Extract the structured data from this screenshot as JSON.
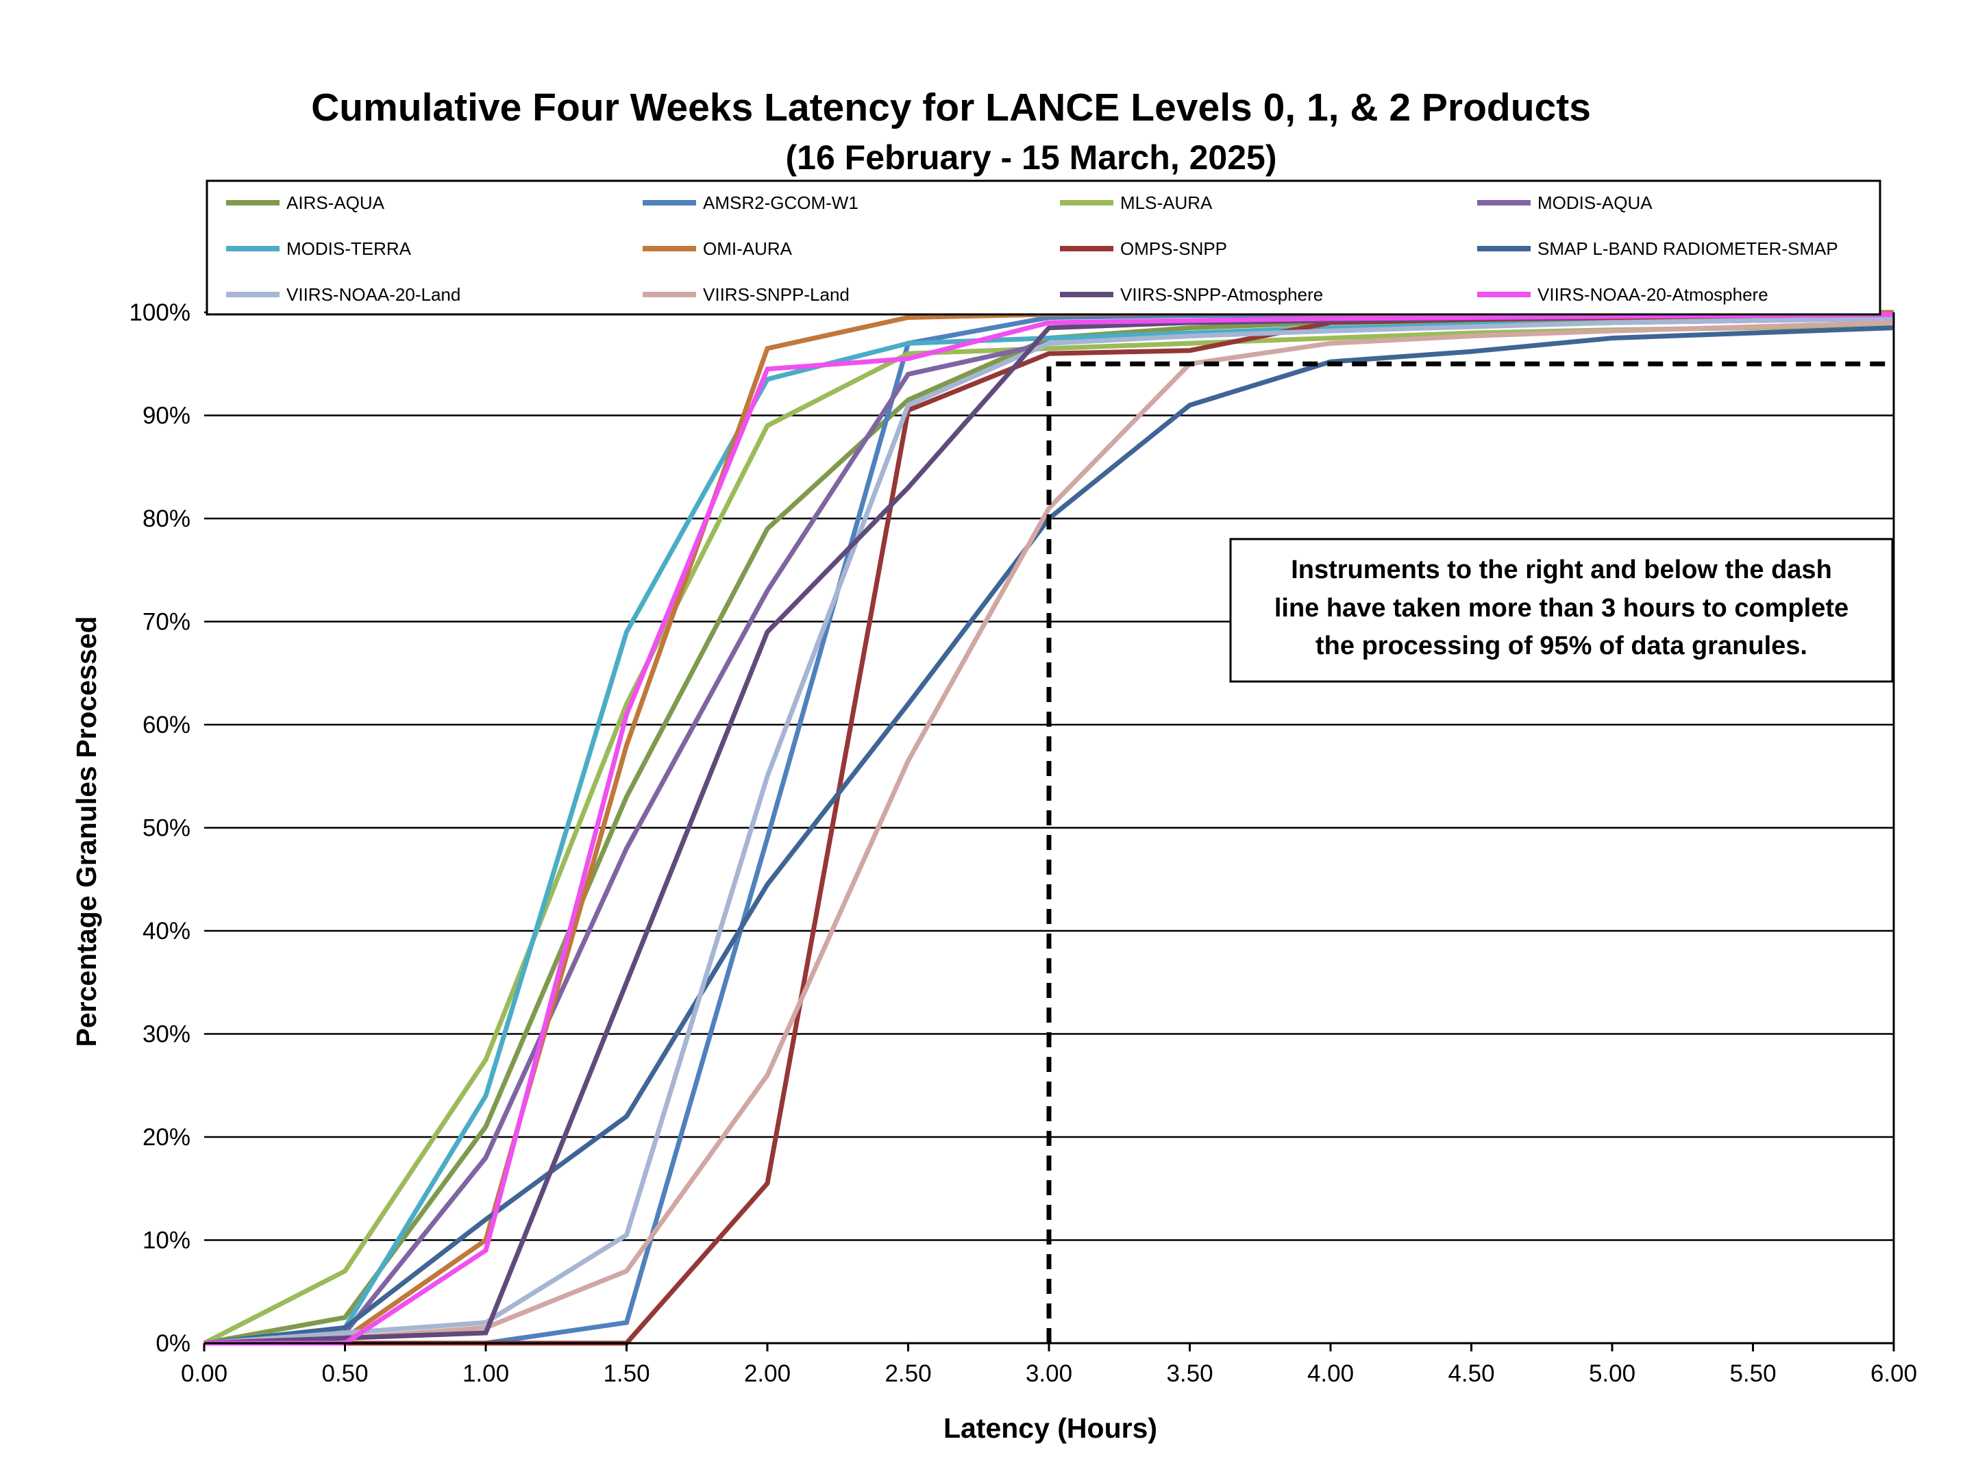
{
  "chart_data": {
    "type": "line",
    "title": "Cumulative Four Weeks Latency  for LANCE Levels 0, 1, & 2 Products",
    "subtitle": "(16  February   -  15  March,  2025)",
    "xlabel": "Latency (Hours)",
    "ylabel": "Percentage Granules Processed",
    "xlim": [
      0,
      6
    ],
    "ylim": [
      0,
      100
    ],
    "x_ticks": [
      "0.00",
      "0.50",
      "1.00",
      "1.50",
      "2.00",
      "2.50",
      "3.00",
      "3.50",
      "4.00",
      "4.50",
      "5.00",
      "5.50",
      "6.00"
    ],
    "y_ticks": [
      "0%",
      "10%",
      "20%",
      "30%",
      "40%",
      "50%",
      "60%",
      "70%",
      "80%",
      "90%",
      "100%"
    ],
    "grid": true,
    "legend_position": "top",
    "x": [
      0,
      0.5,
      1,
      1.5,
      2,
      2.5,
      3,
      3.5,
      4,
      4.5,
      5,
      5.5,
      6
    ],
    "series": [
      {
        "name": "AIRS-AQUA",
        "color": "#7F9A4E",
        "values": [
          0,
          2.5,
          21,
          53,
          79,
          91.5,
          97.5,
          98.5,
          99,
          99.2,
          99.4,
          99.5,
          99.6
        ]
      },
      {
        "name": "AMSR2-GCOM-W1",
        "color": "#4F81BD",
        "values": [
          0,
          0,
          0,
          2,
          49,
          97,
          99.5,
          99.7,
          99.8,
          99.8,
          99.9,
          99.9,
          100
        ]
      },
      {
        "name": "MLS-AURA",
        "color": "#9BBB59",
        "values": [
          0,
          7,
          27.5,
          62,
          89,
          96,
          96.5,
          97,
          97.5,
          98,
          98.3,
          98.5,
          98.8
        ]
      },
      {
        "name": "MODIS-AQUA",
        "color": "#8064A2",
        "values": [
          0,
          1,
          18,
          48,
          73,
          94,
          97,
          97.8,
          98.3,
          98.7,
          99,
          99.2,
          99.4
        ]
      },
      {
        "name": "MODIS-TERRA",
        "color": "#4BACC6",
        "values": [
          0,
          1.5,
          24,
          69,
          93.5,
          97,
          97.5,
          98,
          98.5,
          98.8,
          99,
          99.2,
          99.4
        ]
      },
      {
        "name": "OMI-AURA",
        "color": "#C0783B",
        "values": [
          0,
          0.5,
          10,
          58,
          96.5,
          99.5,
          99.8,
          99.9,
          99.9,
          99.9,
          100,
          100,
          100
        ]
      },
      {
        "name": "OMPS-SNPP",
        "color": "#953735",
        "values": [
          0,
          0,
          0,
          0,
          15.5,
          90.5,
          96,
          96.3,
          99,
          99.3,
          99.5,
          99.7,
          99.8
        ]
      },
      {
        "name": "SMAP L-BAND RADIOMETER-SMAP",
        "color": "#3F6596",
        "values": [
          0,
          1.5,
          12,
          22,
          44.5,
          62,
          80,
          91,
          95.2,
          96.2,
          97.5,
          98,
          98.5
        ]
      },
      {
        "name": "VIIRS-NOAA-20-Land",
        "color": "#A6B5D3",
        "values": [
          0,
          1,
          2,
          10.5,
          55,
          91,
          97,
          97.7,
          98.2,
          98.6,
          99,
          99.2,
          99.4
        ]
      },
      {
        "name": "VIIRS-SNPP-Land",
        "color": "#D1A7A3",
        "values": [
          0,
          0.5,
          1.5,
          7,
          26,
          56.5,
          81,
          95,
          97,
          97.7,
          98.2,
          98.6,
          99
        ]
      },
      {
        "name": "VIIRS-SNPP-Atmosphere",
        "color": "#604A7B",
        "values": [
          0,
          0.5,
          1,
          35,
          69,
          83,
          98.5,
          99,
          99.2,
          99.4,
          99.6,
          99.7,
          99.8
        ]
      },
      {
        "name": "VIIRS-NOAA-20-Atmosphere",
        "color": "#F050F0",
        "values": [
          0,
          0,
          9,
          61,
          94.5,
          95.5,
          99,
          99.2,
          99.4,
          99.5,
          99.6,
          99.7,
          99.8
        ]
      }
    ],
    "threshold_line": {
      "x": 3.0,
      "y": 95,
      "style": "dashed",
      "color": "#000000"
    },
    "annotation": [
      "Instruments to the right and below the dash",
      "line have taken more than 3 hours to complete",
      "the processing of 95% of data granules."
    ]
  }
}
